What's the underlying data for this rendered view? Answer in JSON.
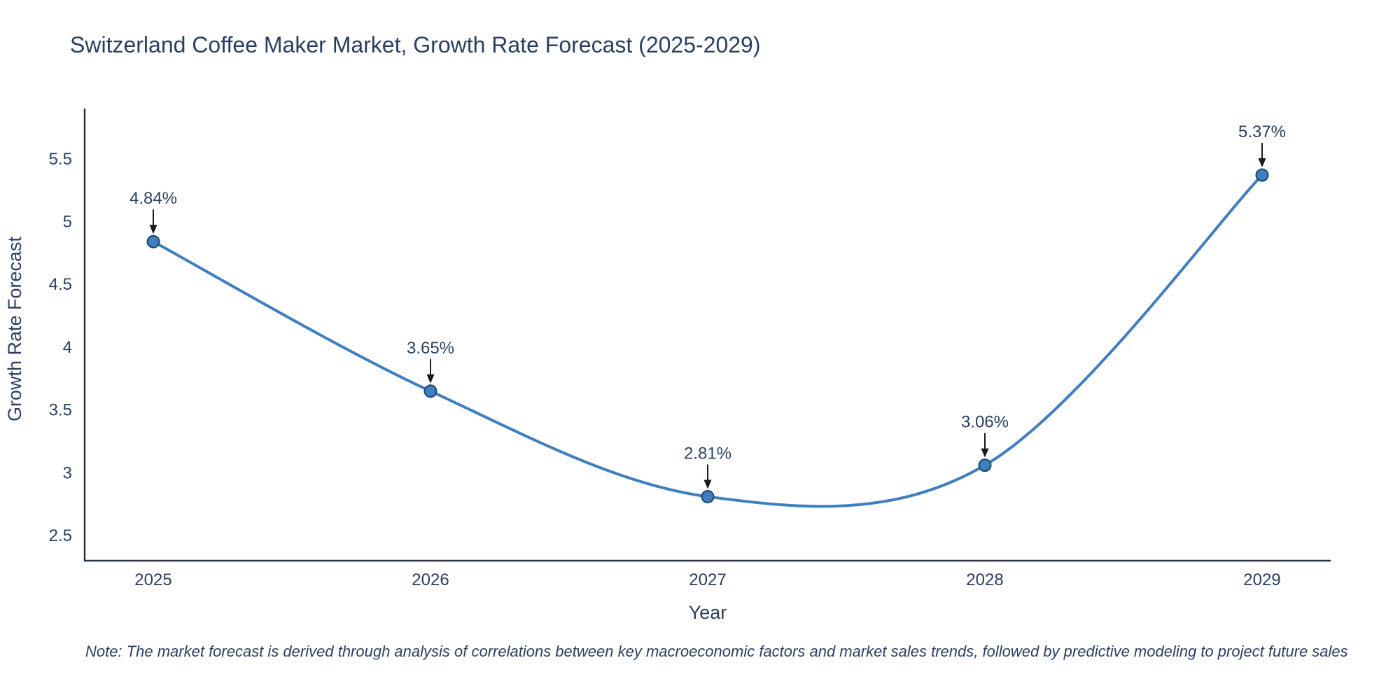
{
  "title": "Switzerland Coffee Maker Market, Growth Rate Forecast (2025-2029)",
  "note": "Note: The market forecast is derived through analysis of correlations between key macroeconomic factors and market sales trends, followed by predictive modeling to project future sales",
  "chart_data": {
    "type": "line",
    "title": "Switzerland Coffee Maker Market, Growth Rate Forecast (2025-2029)",
    "xlabel": "Year",
    "ylabel": "Growth Rate Forecast",
    "x": [
      "2025",
      "2026",
      "2027",
      "2028",
      "2029"
    ],
    "values": [
      4.84,
      3.65,
      2.81,
      3.06,
      5.37
    ],
    "labels": [
      "4.84%",
      "3.65%",
      "2.81%",
      "3.06%",
      "5.37%"
    ],
    "yticks": [
      2.5,
      3,
      3.5,
      4,
      4.5,
      5,
      5.5
    ],
    "ylim": [
      2.3,
      5.9
    ],
    "line_shape": "spline",
    "grid": false,
    "legend": "none",
    "annotations": "value labels with downward arrows at each point",
    "colors": {
      "line": "#3f7fbf",
      "marker": "#3f7fbf",
      "marker_edge": "#1c4966",
      "axis": "#283442",
      "text": "#2a3f5f",
      "arrow": "#1a1a1a"
    }
  }
}
